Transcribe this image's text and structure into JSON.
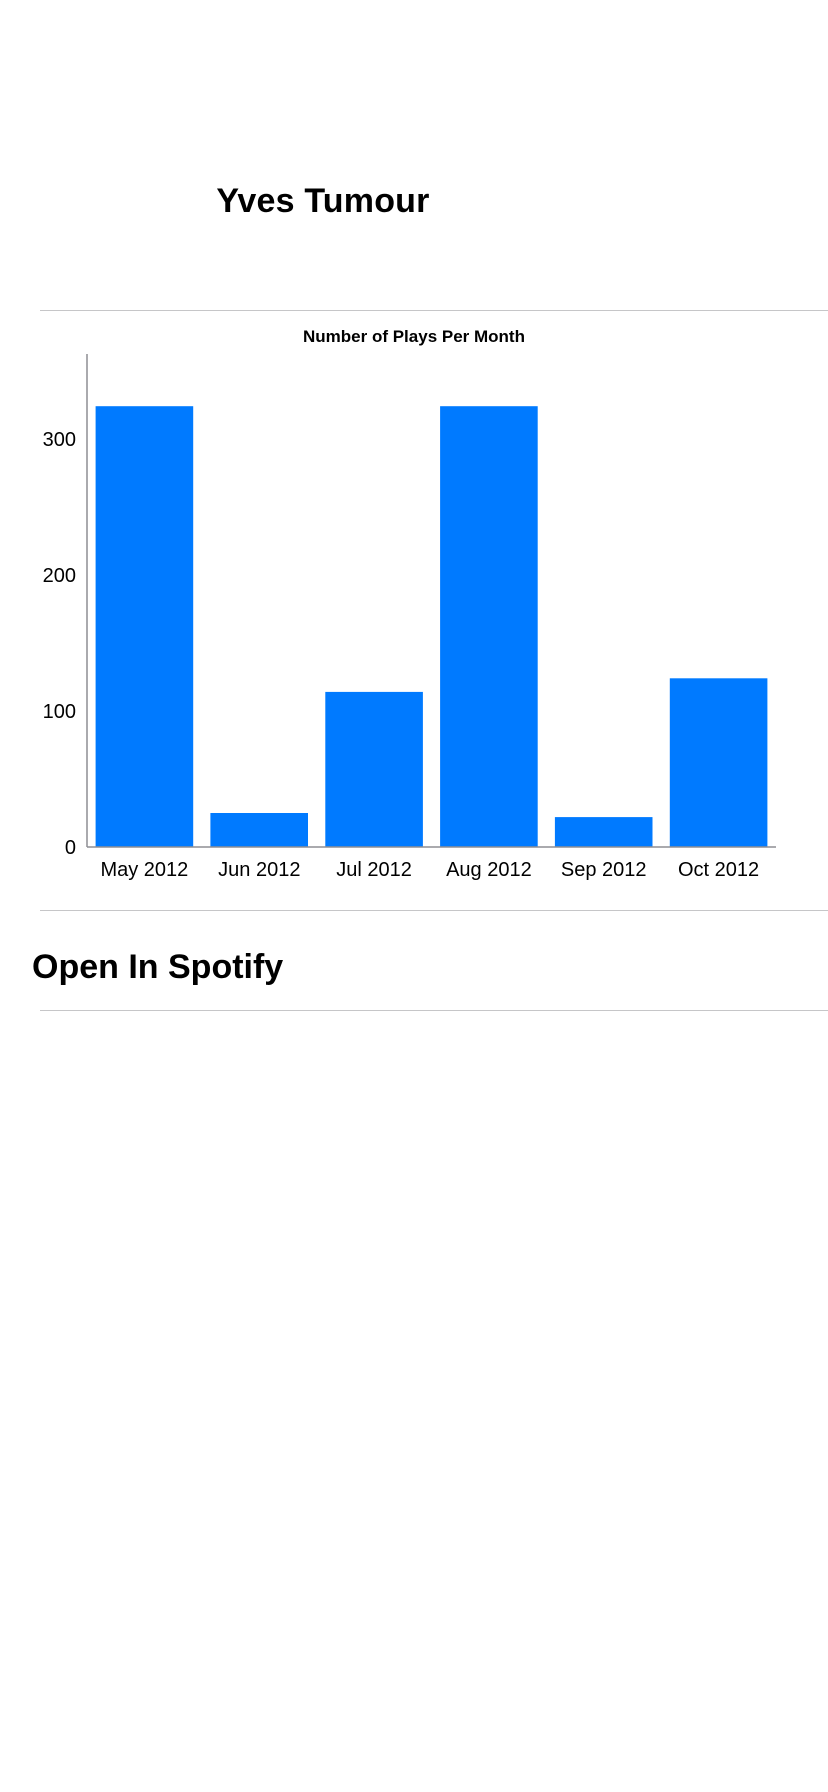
{
  "artist": {
    "name": "Yves Tumour"
  },
  "colors": {
    "bar": "#007aff",
    "divider": "#c6c6c8",
    "axis": "#8e8e93",
    "text": "#000000"
  },
  "chart_data": {
    "type": "bar",
    "title": "Number of Plays Per Month",
    "categories": [
      "May 2012",
      "Jun 2012",
      "Jul 2012",
      "Aug 2012",
      "Sep 2012",
      "Oct 2012"
    ],
    "values": [
      324,
      25,
      114,
      324,
      22,
      124
    ],
    "yticks": [
      0,
      100,
      200,
      300
    ],
    "ylim": [
      0,
      355
    ],
    "xlabel": "",
    "ylabel": "",
    "grid": false,
    "legend": "none"
  },
  "actions": {
    "open_spotify_label": "Open In Spotify"
  }
}
